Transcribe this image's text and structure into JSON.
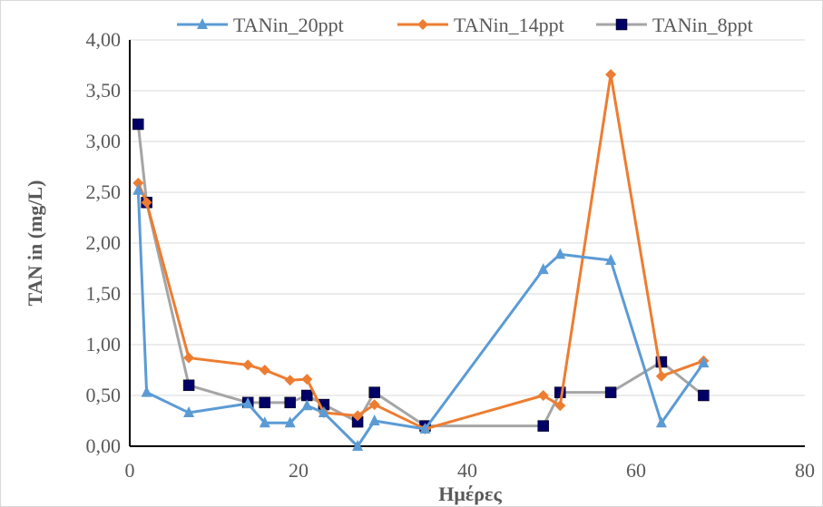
{
  "chart_data": {
    "type": "line",
    "xlabel": "Ημέρες",
    "ylabel": "TAN in (mg/L)",
    "xlim": [
      0,
      80
    ],
    "ylim": [
      0,
      4
    ],
    "x_ticks": [
      "0",
      "20",
      "40",
      "60",
      "80"
    ],
    "y_ticks": [
      "0,00",
      "0,50",
      "1,00",
      "1,50",
      "2,00",
      "2,50",
      "3,00",
      "3,50",
      "4,00"
    ],
    "grid": "horizontal",
    "legend": "top",
    "series": [
      {
        "name": "TANin_20ppt",
        "color": "#5b9bd5",
        "marker": "triangle",
        "x": [
          1,
          2,
          7,
          14,
          16,
          19,
          21,
          23,
          27,
          29,
          35,
          49,
          51,
          57,
          63,
          68
        ],
        "y": [
          2.52,
          0.53,
          0.33,
          0.42,
          0.23,
          0.23,
          0.4,
          0.33,
          0.0,
          0.25,
          0.17,
          1.74,
          1.89,
          1.83,
          0.23,
          0.82
        ]
      },
      {
        "name": "TANin_14ppt",
        "color": "#ed7d31",
        "marker": "diamond",
        "x": [
          1,
          2,
          7,
          14,
          16,
          19,
          21,
          23,
          27,
          29,
          35,
          49,
          51,
          57,
          63,
          68
        ],
        "y": [
          2.59,
          2.4,
          0.87,
          0.8,
          0.75,
          0.65,
          0.66,
          0.33,
          0.3,
          0.41,
          0.17,
          0.5,
          0.4,
          3.66,
          0.69,
          0.84
        ]
      },
      {
        "name": "TANin_8ppt",
        "color": "#a5a5a5",
        "marker_color": "#000066",
        "marker": "square",
        "x": [
          1,
          2,
          7,
          14,
          16,
          19,
          21,
          23,
          27,
          29,
          35,
          49,
          51,
          57,
          63,
          68
        ],
        "y": [
          3.17,
          2.4,
          0.6,
          0.43,
          0.43,
          0.43,
          0.5,
          0.41,
          0.24,
          0.53,
          0.2,
          0.2,
          0.53,
          0.53,
          0.83,
          0.5
        ]
      }
    ]
  }
}
